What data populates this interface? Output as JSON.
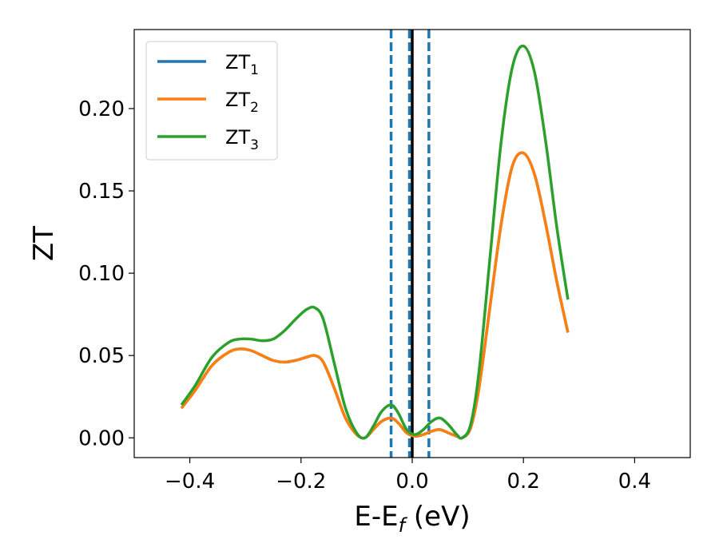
{
  "chart_data": {
    "type": "line",
    "xlabel": "E-E",
    "xlabel_sub": "f",
    "xlabel_unit": " (eV)",
    "ylabel": "ZT",
    "xlim": [
      -0.5,
      0.5
    ],
    "ylim": [
      -0.012,
      0.248
    ],
    "xticks": [
      -0.4,
      -0.2,
      0.0,
      0.2,
      0.4
    ],
    "xtick_labels": [
      "−0.4",
      "−0.2",
      "0.0",
      "0.2",
      "0.4"
    ],
    "yticks": [
      0.0,
      0.05,
      0.1,
      0.15,
      0.2
    ],
    "ytick_labels": [
      "0.00",
      "0.05",
      "0.10",
      "0.15",
      "0.20"
    ],
    "grid": false,
    "legend": {
      "placement": "top-left"
    },
    "vlines": [
      {
        "x": -0.038,
        "style": "dashed",
        "color": "#1f77b4"
      },
      {
        "x": -0.005,
        "style": "dashed",
        "color": "#1f77b4"
      },
      {
        "x": 0.03,
        "style": "dashed",
        "color": "#1f77b4"
      },
      {
        "x": 0.0,
        "style": "solid",
        "color": "#000000"
      }
    ],
    "series": [
      {
        "name": "ZT",
        "subscript": "1",
        "color": "#1f77b4",
        "x": [
          -0.415,
          -0.39,
          -0.36,
          -0.33,
          -0.31,
          -0.29,
          -0.27,
          -0.25,
          -0.23,
          -0.21,
          -0.19,
          -0.175,
          -0.16,
          -0.14,
          -0.12,
          -0.1,
          -0.085,
          -0.07,
          -0.055,
          -0.038,
          -0.025,
          -0.01,
          0.005,
          0.02,
          0.035,
          0.05,
          0.065,
          0.08,
          0.09,
          0.105,
          0.12,
          0.14,
          0.16,
          0.18,
          0.2,
          0.22,
          0.24,
          0.26,
          0.28
        ],
        "values": [
          0.018,
          0.029,
          0.044,
          0.052,
          0.054,
          0.053,
          0.05,
          0.047,
          0.046,
          0.047,
          0.049,
          0.05,
          0.046,
          0.03,
          0.012,
          0.002,
          0.0,
          0.005,
          0.01,
          0.012,
          0.009,
          0.003,
          0.001,
          0.002,
          0.004,
          0.005,
          0.003,
          0.001,
          0.0,
          0.006,
          0.03,
          0.08,
          0.13,
          0.165,
          0.173,
          0.16,
          0.13,
          0.095,
          0.064
        ]
      },
      {
        "name": "ZT",
        "subscript": "2",
        "color": "#ff7f0e",
        "x": [
          -0.415,
          -0.39,
          -0.36,
          -0.33,
          -0.31,
          -0.29,
          -0.27,
          -0.25,
          -0.23,
          -0.21,
          -0.19,
          -0.175,
          -0.16,
          -0.14,
          -0.12,
          -0.1,
          -0.085,
          -0.07,
          -0.055,
          -0.038,
          -0.025,
          -0.01,
          0.005,
          0.02,
          0.035,
          0.05,
          0.065,
          0.08,
          0.09,
          0.105,
          0.12,
          0.14,
          0.16,
          0.18,
          0.2,
          0.22,
          0.24,
          0.26,
          0.28
        ],
        "values": [
          0.018,
          0.029,
          0.044,
          0.052,
          0.054,
          0.053,
          0.05,
          0.047,
          0.046,
          0.047,
          0.049,
          0.05,
          0.046,
          0.03,
          0.012,
          0.002,
          0.0,
          0.005,
          0.01,
          0.012,
          0.009,
          0.003,
          0.001,
          0.002,
          0.004,
          0.005,
          0.003,
          0.001,
          0.0,
          0.006,
          0.03,
          0.08,
          0.13,
          0.165,
          0.173,
          0.16,
          0.13,
          0.095,
          0.064
        ]
      },
      {
        "name": "ZT",
        "subscript": "3",
        "color": "#2ca02c",
        "x": [
          -0.415,
          -0.39,
          -0.36,
          -0.33,
          -0.31,
          -0.29,
          -0.27,
          -0.25,
          -0.23,
          -0.21,
          -0.19,
          -0.175,
          -0.16,
          -0.14,
          -0.12,
          -0.1,
          -0.085,
          -0.07,
          -0.055,
          -0.038,
          -0.025,
          -0.01,
          0.005,
          0.02,
          0.035,
          0.05,
          0.065,
          0.08,
          0.09,
          0.105,
          0.12,
          0.14,
          0.16,
          0.18,
          0.2,
          0.22,
          0.24,
          0.26,
          0.28
        ],
        "values": [
          0.02,
          0.032,
          0.049,
          0.058,
          0.06,
          0.06,
          0.059,
          0.06,
          0.065,
          0.072,
          0.078,
          0.079,
          0.072,
          0.045,
          0.018,
          0.003,
          0.0,
          0.007,
          0.016,
          0.02,
          0.015,
          0.005,
          0.002,
          0.005,
          0.01,
          0.012,
          0.008,
          0.002,
          0.0,
          0.008,
          0.04,
          0.11,
          0.18,
          0.225,
          0.238,
          0.222,
          0.18,
          0.128,
          0.084
        ]
      }
    ]
  }
}
